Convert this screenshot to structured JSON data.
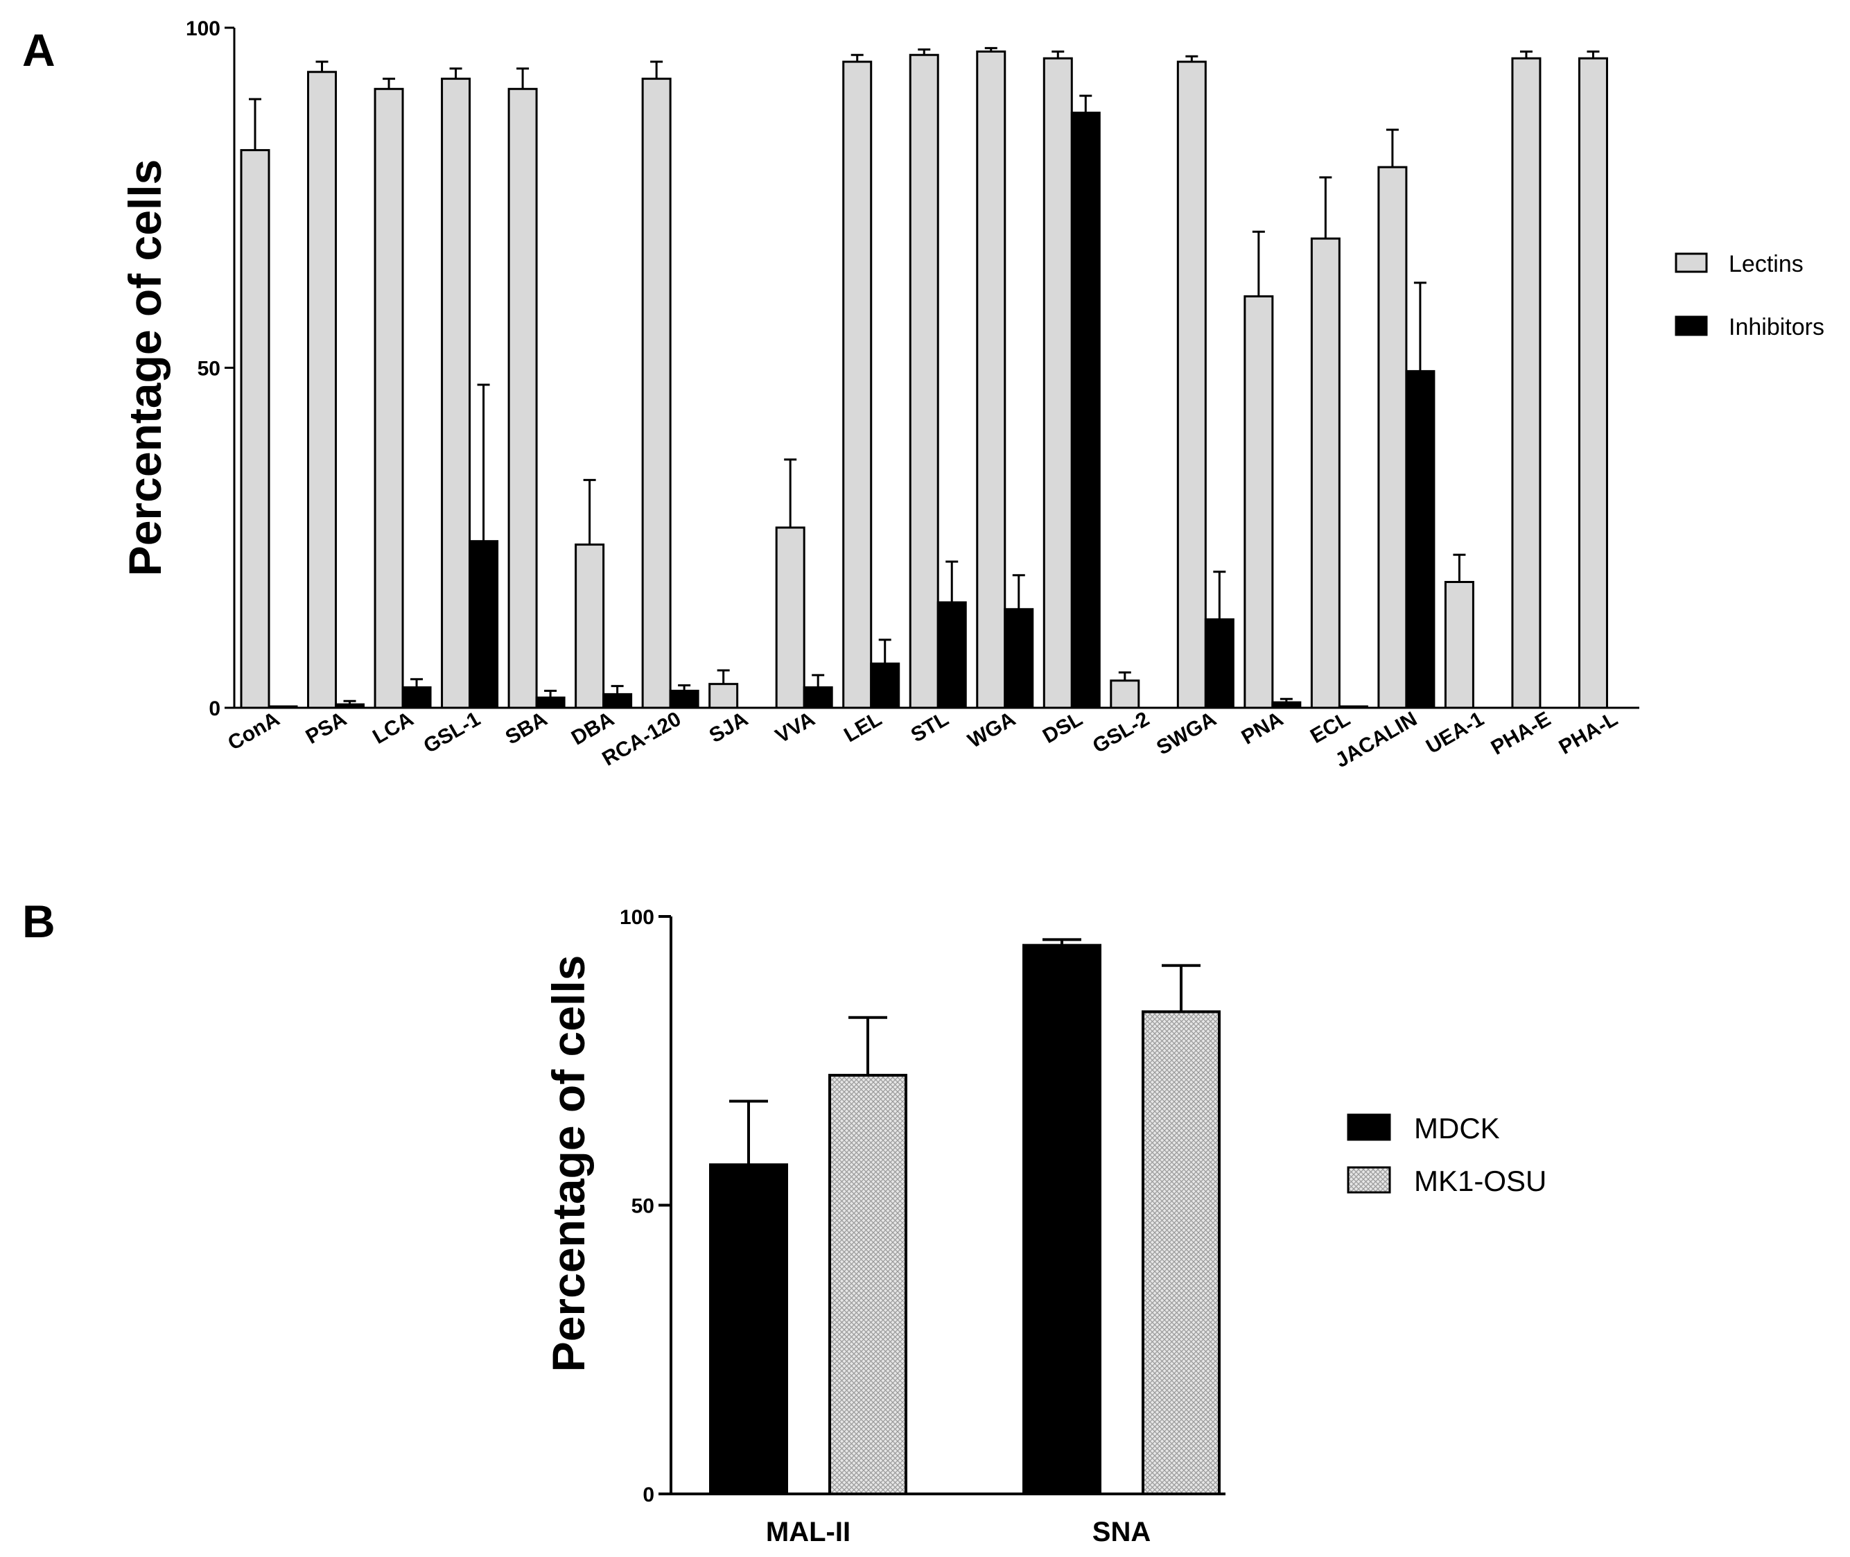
{
  "chart_data": [
    {
      "panel": "A",
      "type": "bar",
      "title": "",
      "xlabel": "",
      "ylabel": "Percentage of cells",
      "ylim": [
        0,
        100
      ],
      "yticks": [
        "0",
        "50",
        "100"
      ],
      "legend_position": "right",
      "categories": [
        "ConA",
        "PSA",
        "LCA",
        "GSL-1",
        "SBA",
        "DBA",
        "RCA-120",
        "SJA",
        "VVA",
        "LEL",
        "STL",
        "WGA",
        "DSL",
        "GSL-2",
        "SWGA",
        "PNA",
        "ECL",
        "JACALIN",
        "UEA-1",
        "PHA-E",
        "PHA-L"
      ],
      "series": [
        {
          "name": "Lectins",
          "color": "#d9d9d9",
          "values": [
            82,
            93.5,
            91,
            92.5,
            91,
            24,
            92.5,
            3.5,
            26.5,
            95,
            96,
            96.5,
            95.5,
            4,
            95,
            60.5,
            69,
            79.5,
            18.5,
            95.5,
            95.5
          ],
          "errors": [
            7.5,
            1.5,
            1.5,
            1.5,
            3,
            9.5,
            2.5,
            2,
            10,
            1,
            0.8,
            0.5,
            1,
            1.2,
            0.8,
            9.5,
            9,
            5.5,
            4,
            1,
            1
          ]
        },
        {
          "name": "Inhibitors",
          "color": "#000000",
          "values": [
            0.2,
            0.5,
            3,
            24.5,
            1.5,
            2,
            2.5,
            null,
            3,
            6.5,
            15.5,
            14.5,
            87.5,
            null,
            13,
            0.8,
            0.2,
            49.5,
            null,
            null,
            null
          ],
          "errors": [
            0,
            0.5,
            1.2,
            23,
            1,
            1.2,
            0.8,
            null,
            1.8,
            3.5,
            6,
            5,
            2.5,
            null,
            7,
            0.5,
            0,
            13,
            null,
            null,
            null
          ]
        }
      ]
    },
    {
      "panel": "B",
      "type": "bar",
      "title": "",
      "xlabel": "",
      "ylabel": "Percentage of cells",
      "ylim": [
        0,
        100
      ],
      "yticks": [
        "0",
        "50",
        "100"
      ],
      "legend_position": "right",
      "categories": [
        "MAL-II",
        "SNA"
      ],
      "series": [
        {
          "name": "MDCK",
          "color": "#000000",
          "pattern": "solid",
          "values": [
            57,
            95
          ],
          "errors": [
            11,
            1
          ]
        },
        {
          "name": "MK1-OSU",
          "color": "#d9d9d9",
          "pattern": "crosshatch",
          "values": [
            72.5,
            83.5
          ],
          "errors": [
            10,
            8
          ]
        }
      ]
    }
  ]
}
